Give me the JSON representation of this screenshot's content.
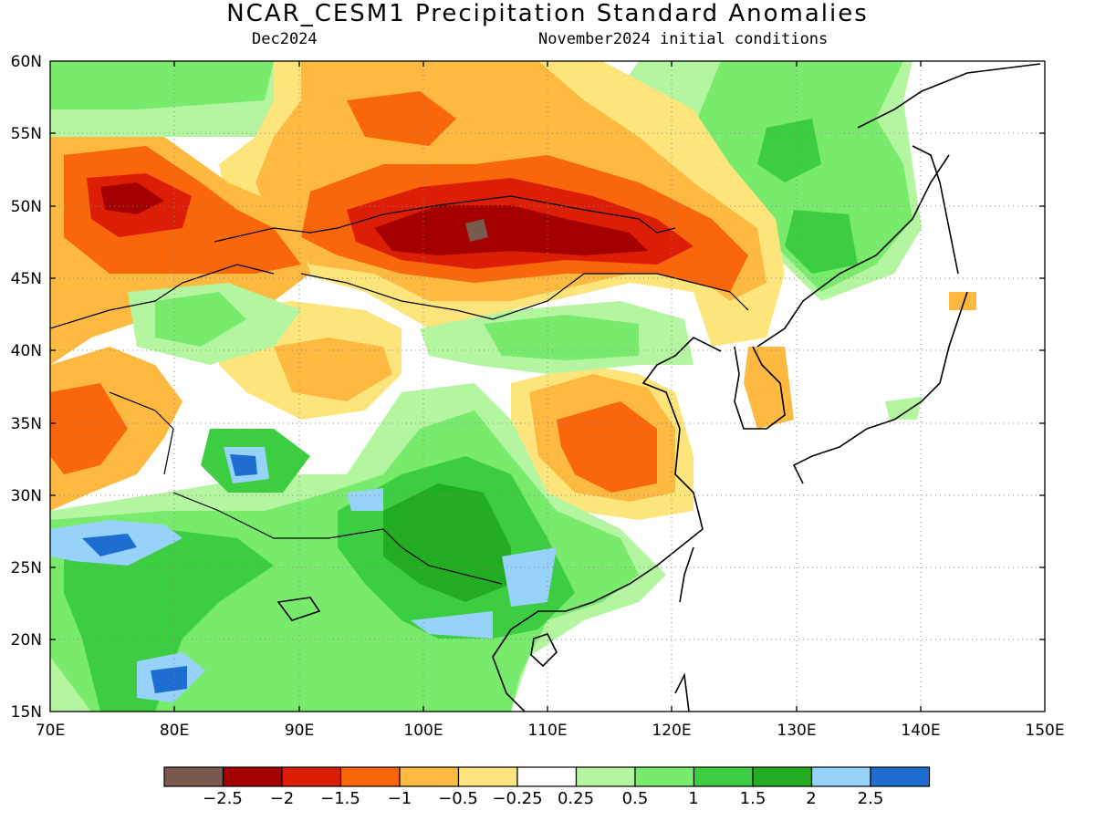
{
  "title": "NCAR_CESM1 Precipitation Standard Anomalies",
  "subtitle_left": "Dec2024",
  "subtitle_right": "November2024 initial conditions",
  "map": {
    "lon_range": [
      70,
      150
    ],
    "lat_range": [
      15,
      60
    ],
    "lat_ticks": [
      "60N",
      "55N",
      "50N",
      "45N",
      "40N",
      "35N",
      "30N",
      "25N",
      "20N",
      "15N"
    ],
    "lon_ticks": [
      "70E",
      "80E",
      "90E",
      "100E",
      "110E",
      "120E",
      "130E",
      "140E",
      "150E"
    ],
    "grid": "dotted"
  },
  "colorbar": {
    "colors": [
      "#7a5a4e",
      "#a50000",
      "#dd1e06",
      "#fa660a",
      "#fdb940",
      "#fde57c",
      "#ffffff",
      "#b4f5a0",
      "#78eb6c",
      "#3ccd40",
      "#22ac22",
      "#96d2fa",
      "#1e6ed2"
    ],
    "labels": [
      "−2.5",
      "−2",
      "−1.5",
      "−1",
      "−0.5",
      "−0.25",
      "0.25",
      "0.5",
      "1",
      "1.5",
      "2",
      "2.5"
    ]
  }
}
